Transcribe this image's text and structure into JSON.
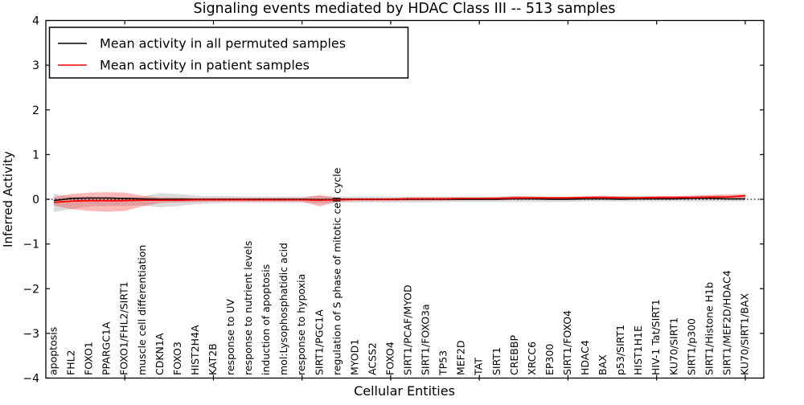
{
  "figure": {
    "title": "Signaling events mediated by HDAC Class III -- 513 samples",
    "xlabel": "Cellular Entities",
    "ylabel": "Inferred Activity"
  },
  "legend": {
    "entries": [
      {
        "label": "Mean activity in all permuted samples",
        "color": "#000000"
      },
      {
        "label": "Mean activity in patient samples",
        "color": "#ff0000"
      }
    ]
  },
  "chart_data": {
    "type": "line",
    "title": "Signaling events mediated by HDAC Class III -- 513 samples",
    "xlabel": "Cellular Entities",
    "ylabel": "Inferred Activity",
    "ylim": [
      -4,
      4
    ],
    "yticks": [
      -4,
      -3,
      -2,
      -1,
      0,
      1,
      2,
      3,
      4
    ],
    "ytick_labels": [
      "−4",
      "−3",
      "−2",
      "−1",
      "0",
      "1",
      "2",
      "3",
      "4"
    ],
    "grid": false,
    "legend_position": "upper left",
    "zero_line": {
      "value": 0,
      "style": "dotted",
      "color": "#000000"
    },
    "categories": [
      "apoptosis",
      "FHL2",
      "FOXO1",
      "PPARGC1A",
      "FOXO1/FHL2/SIRT1",
      "muscle cell differentiation",
      "CDKN1A",
      "FOXO3",
      "HIST2H4A",
      "KAT2B",
      "response to UV",
      "response to nutrient levels",
      "induction of apoptosis",
      "mol:Lysophosphatidic acid",
      "response to hypoxia",
      "SIRT1/PGC1A",
      "regulation of S phase of mitotic cell cycle",
      "MYOD1",
      "ACSS2",
      "FOXO4",
      "SIRT1/PCAF/MYOD",
      "SIRT1/FOXO3a",
      "TP53",
      "MEF2D",
      "TAT",
      "SIRT1",
      "CREBBP",
      "XRCC6",
      "EP300",
      "SIRT1/FOXO4",
      "HDAC4",
      "BAX",
      "p53/SIRT1",
      "HIST1H1E",
      "HIV-1 Tat/SIRT1",
      "KU70/SIRT1",
      "SIRT1/p300",
      "SIRT1/Histone H1b",
      "SIRT1/MEF2D/HDAC4",
      "KU70/SIRT1/BAX"
    ],
    "series": [
      {
        "name": "Mean activity in all permuted samples",
        "color": "#000000",
        "style": "solid",
        "values": [
          -0.03,
          0.02,
          0.03,
          0.03,
          0.02,
          0.01,
          0.0,
          0.0,
          0.0,
          0.0,
          0.0,
          0.0,
          0.0,
          0.0,
          0.0,
          -0.01,
          0.0,
          0.0,
          0.0,
          0.0,
          0.0,
          0.0,
          0.0,
          0.0,
          0.0,
          0.0,
          0.01,
          0.01,
          0.0,
          0.0,
          0.01,
          0.01,
          0.0,
          0.01,
          0.01,
          0.01,
          0.02,
          0.02,
          0.01,
          0.01
        ]
      },
      {
        "name": "Mean activity in patient samples",
        "color": "#ff0000",
        "style": "solid",
        "values": [
          -0.07,
          -0.04,
          -0.03,
          -0.03,
          -0.03,
          -0.02,
          -0.02,
          -0.02,
          -0.01,
          -0.01,
          -0.01,
          -0.01,
          -0.01,
          -0.01,
          -0.01,
          -0.02,
          -0.01,
          0.0,
          0.0,
          0.0,
          0.01,
          0.01,
          0.01,
          0.02,
          0.02,
          0.02,
          0.03,
          0.03,
          0.03,
          0.03,
          0.04,
          0.04,
          0.03,
          0.03,
          0.04,
          0.04,
          0.04,
          0.05,
          0.05,
          0.08
        ]
      }
    ],
    "bands": [
      {
        "name": "permuted samples range",
        "color": "#888888",
        "opacity": 0.3,
        "upper": [
          0.12,
          0.06,
          0.05,
          0.04,
          0.04,
          0.06,
          0.14,
          0.12,
          0.08,
          0.07,
          0.07,
          0.06,
          0.06,
          0.06,
          0.06,
          0.07,
          0.06,
          0.06,
          0.06,
          0.06,
          0.06,
          0.06,
          0.06,
          0.06,
          0.06,
          0.06,
          0.07,
          0.07,
          0.06,
          0.06,
          0.07,
          0.07,
          0.07,
          0.07,
          0.07,
          0.07,
          0.08,
          0.08,
          0.08,
          0.09
        ],
        "lower": [
          -0.28,
          -0.22,
          -0.16,
          -0.15,
          -0.15,
          -0.14,
          -0.18,
          -0.15,
          -0.11,
          -0.09,
          -0.08,
          -0.08,
          -0.08,
          -0.08,
          -0.08,
          -0.09,
          -0.08,
          -0.07,
          -0.07,
          -0.07,
          -0.07,
          -0.07,
          -0.06,
          -0.06,
          -0.06,
          -0.06,
          -0.06,
          -0.06,
          -0.06,
          -0.06,
          -0.05,
          -0.05,
          -0.05,
          -0.05,
          -0.05,
          -0.05,
          -0.05,
          -0.05,
          -0.05,
          -0.05
        ]
      },
      {
        "name": "patient samples range",
        "color": "#ff0000",
        "opacity": 0.28,
        "upper": [
          0.05,
          0.12,
          0.15,
          0.16,
          0.15,
          0.08,
          0.04,
          0.04,
          0.03,
          0.03,
          0.03,
          0.03,
          0.03,
          0.03,
          0.03,
          0.1,
          0.03,
          0.03,
          0.03,
          0.03,
          0.04,
          0.04,
          0.04,
          0.04,
          0.04,
          0.05,
          0.07,
          0.06,
          0.05,
          0.05,
          0.06,
          0.08,
          0.06,
          0.06,
          0.07,
          0.07,
          0.08,
          0.1,
          0.11,
          0.12
        ],
        "lower": [
          -0.14,
          -0.22,
          -0.26,
          -0.28,
          -0.26,
          -0.16,
          -0.08,
          -0.07,
          -0.06,
          -0.05,
          -0.05,
          -0.05,
          -0.05,
          -0.05,
          -0.05,
          -0.16,
          -0.05,
          -0.04,
          -0.04,
          -0.04,
          -0.03,
          -0.03,
          -0.03,
          -0.02,
          -0.02,
          -0.02,
          -0.01,
          -0.01,
          -0.01,
          -0.01,
          0.0,
          0.0,
          0.0,
          0.0,
          0.01,
          0.01,
          0.01,
          0.01,
          0.02,
          0.03
        ]
      }
    ]
  }
}
